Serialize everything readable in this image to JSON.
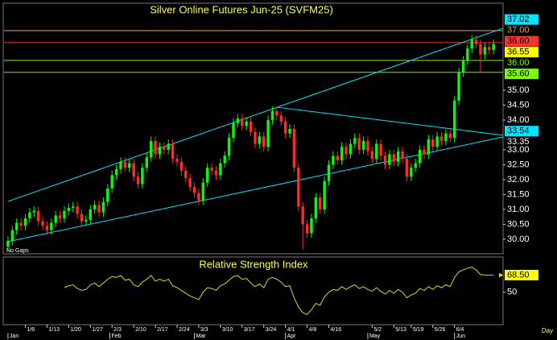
{
  "chart_data": {
    "type": "candlestick",
    "title": "Silver Online Futures Jun-25 (SVFM25)",
    "note": "No Gaps",
    "period": "Day",
    "xlim": [
      -1.1,
      114.2
    ],
    "ylim": [
      29.51,
      37.92
    ],
    "up_color": "#00ff00",
    "down_color": "#ff2a2a",
    "yticks": [
      {
        "value": 30,
        "label": "30.00"
      },
      {
        "value": 30.5,
        "label": "30.50"
      },
      {
        "value": 31,
        "label": "31.00"
      },
      {
        "value": 31.5,
        "label": "31.50"
      },
      {
        "value": 32,
        "label": "32.00"
      },
      {
        "value": 32.5,
        "label": "32.50"
      },
      {
        "value": 33,
        "label": "33.00"
      },
      {
        "value": 34,
        "label": "34.00"
      },
      {
        "value": 34.5,
        "label": "34.50"
      },
      {
        "value": 35,
        "label": "35.00"
      }
    ],
    "xticks": [
      {
        "value": 4,
        "label": "1/6"
      },
      {
        "value": 9,
        "label": "1/13"
      },
      {
        "value": 14,
        "label": "1/20"
      },
      {
        "value": 19,
        "label": "1/27"
      },
      {
        "value": 24,
        "label": "2/3"
      },
      {
        "value": 29,
        "label": "2/10"
      },
      {
        "value": 34,
        "label": "2/17"
      },
      {
        "value": 39,
        "label": "2/24"
      },
      {
        "value": 44,
        "label": "3/3"
      },
      {
        "value": 49,
        "label": "3/10"
      },
      {
        "value": 54,
        "label": "3/17"
      },
      {
        "value": 59,
        "label": "3/24"
      },
      {
        "value": 64,
        "label": "4/1"
      },
      {
        "value": 69,
        "label": "4/8"
      },
      {
        "value": 74,
        "label": "4/16"
      },
      {
        "value": 84,
        "label": "5/2"
      },
      {
        "value": 89,
        "label": "5/13"
      },
      {
        "value": 93,
        "label": "5/19"
      },
      {
        "value": 98,
        "label": "5/26"
      },
      {
        "value": 103,
        "label": "6/4"
      }
    ],
    "month_ticks": [
      {
        "value": 0,
        "label": "Jan"
      },
      {
        "value": 23.5,
        "label": "Feb"
      },
      {
        "value": 43,
        "label": "Mar"
      },
      {
        "value": 64,
        "label": "Apr"
      },
      {
        "value": 83,
        "label": "May"
      },
      {
        "value": 103,
        "label": "Jun"
      }
    ],
    "open": [
      29.75,
      29.95,
      30.3,
      30.55,
      30.45,
      30.7,
      30.9,
      30.95,
      30.6,
      30.45,
      30.3,
      30.55,
      30.8,
      30.7,
      30.95,
      31.05,
      31.1,
      30.85,
      30.6,
      30.65,
      31.0,
      31.15,
      30.9,
      31.25,
      31.7,
      32.15,
      32.35,
      32.6,
      32.4,
      32.55,
      32.1,
      31.85,
      32.4,
      32.75,
      33.3,
      32.85,
      33.1,
      33.0,
      33.2,
      32.7,
      32.6,
      32.3,
      32.05,
      31.75,
      31.55,
      31.3,
      31.9,
      32.4,
      32.3,
      32.15,
      32.55,
      32.8,
      33.4,
      33.9,
      34.05,
      33.8,
      33.95,
      33.6,
      33.2,
      33.45,
      33.1,
      34.0,
      34.3,
      34.15,
      33.95,
      33.55,
      33.7,
      32.4,
      31.1,
      30.5,
      30.2,
      30.7,
      31.4,
      31.0,
      31.95,
      32.5,
      32.8,
      32.65,
      33.1,
      32.85,
      33.2,
      33.4,
      33.0,
      33.3,
      32.95,
      32.7,
      33.2,
      32.8,
      32.5,
      32.85,
      32.6,
      32.95,
      32.7,
      32.1,
      32.4,
      32.55,
      33.0,
      32.85,
      33.35,
      33.1,
      33.45,
      33.3,
      33.55,
      33.4,
      34.65,
      35.6,
      36.0,
      36.4,
      36.7,
      36.55,
      36.2,
      36.45,
      36.35
    ],
    "high": [
      30.1,
      30.45,
      30.7,
      30.7,
      30.85,
      31.05,
      31.1,
      31.1,
      30.75,
      30.6,
      30.7,
      30.95,
      30.95,
      31.1,
      31.2,
      31.25,
      31.25,
      31.0,
      30.8,
      31.15,
      31.3,
      31.3,
      31.4,
      31.85,
      32.3,
      32.5,
      32.75,
      32.75,
      32.7,
      32.7,
      32.25,
      32.55,
      32.9,
      33.45,
      33.45,
      33.25,
      33.25,
      33.35,
      33.35,
      32.85,
      32.75,
      32.45,
      32.2,
      31.9,
      31.7,
      32.05,
      32.55,
      32.55,
      32.45,
      32.7,
      32.95,
      33.55,
      34.05,
      34.2,
      34.2,
      34.1,
      34.1,
      33.75,
      33.6,
      33.6,
      34.15,
      34.45,
      34.45,
      34.3,
      34.1,
      33.85,
      33.85,
      32.55,
      31.25,
      30.65,
      30.85,
      31.55,
      31.55,
      32.1,
      32.65,
      32.95,
      32.95,
      33.25,
      33.25,
      33.35,
      33.55,
      33.55,
      33.45,
      33.45,
      33.1,
      33.35,
      33.35,
      32.95,
      33.0,
      33.0,
      33.1,
      33.1,
      32.85,
      32.55,
      32.7,
      33.15,
      33.15,
      33.5,
      33.5,
      33.6,
      33.6,
      33.7,
      33.7,
      34.8,
      35.75,
      36.15,
      36.55,
      36.85,
      36.85,
      36.7,
      36.6,
      36.6,
      36.7
    ],
    "low": [
      29.6,
      29.8,
      30.15,
      30.3,
      30.3,
      30.55,
      30.75,
      30.45,
      30.3,
      30.15,
      30.15,
      30.4,
      30.55,
      30.55,
      30.8,
      30.9,
      30.7,
      30.45,
      30.45,
      30.5,
      30.85,
      30.75,
      30.75,
      31.1,
      31.55,
      32.0,
      32.2,
      32.25,
      32.25,
      31.95,
      31.7,
      31.7,
      32.25,
      32.6,
      32.7,
      32.7,
      32.85,
      32.85,
      32.55,
      32.45,
      32.15,
      31.9,
      31.6,
      31.4,
      31.15,
      31.15,
      31.75,
      32.15,
      32.0,
      32.0,
      32.4,
      32.65,
      33.25,
      33.75,
      33.65,
      33.65,
      33.45,
      33.05,
      33.05,
      32.95,
      32.95,
      33.85,
      34.0,
      33.8,
      33.4,
      33.4,
      32.25,
      30.95,
      29.65,
      30.05,
      30.05,
      30.55,
      30.85,
      30.85,
      31.8,
      32.35,
      32.5,
      32.5,
      32.7,
      32.7,
      33.05,
      32.85,
      32.85,
      32.8,
      32.55,
      32.55,
      32.65,
      32.35,
      32.35,
      32.45,
      32.45,
      32.55,
      31.95,
      31.95,
      32.25,
      32.4,
      32.7,
      32.7,
      32.95,
      32.95,
      33.15,
      33.15,
      33.25,
      33.25,
      34.5,
      35.45,
      35.85,
      36.25,
      36.4,
      35.6,
      36.05,
      36.2,
      36.2
    ],
    "close": [
      29.95,
      30.3,
      30.55,
      30.45,
      30.7,
      30.9,
      30.95,
      30.6,
      30.45,
      30.3,
      30.55,
      30.8,
      30.7,
      30.95,
      31.05,
      31.1,
      30.85,
      30.6,
      30.65,
      31.0,
      31.15,
      30.9,
      31.25,
      31.7,
      32.15,
      32.35,
      32.6,
      32.4,
      32.55,
      32.1,
      31.85,
      32.4,
      32.75,
      33.3,
      32.85,
      33.1,
      33.0,
      33.2,
      32.7,
      32.6,
      32.3,
      32.05,
      31.75,
      31.55,
      31.3,
      31.9,
      32.4,
      32.3,
      32.15,
      32.55,
      32.8,
      33.4,
      33.9,
      34.05,
      33.8,
      33.95,
      33.6,
      33.2,
      33.45,
      33.1,
      34.0,
      34.3,
      34.15,
      33.95,
      33.55,
      33.7,
      32.4,
      31.1,
      30.5,
      30.2,
      30.7,
      31.4,
      31.0,
      31.95,
      32.5,
      32.8,
      32.65,
      33.1,
      32.85,
      33.2,
      33.4,
      33.0,
      33.3,
      32.95,
      32.7,
      33.2,
      32.8,
      32.5,
      32.85,
      32.6,
      32.95,
      32.7,
      32.1,
      32.4,
      32.55,
      33.0,
      32.85,
      33.35,
      33.1,
      33.45,
      33.3,
      33.55,
      33.4,
      34.65,
      35.6,
      36.0,
      36.4,
      36.7,
      36.55,
      36.2,
      36.45,
      36.35,
      36.55
    ],
    "trendlines": [
      {
        "color": "#00e5ff",
        "x": [
          0,
          114.2
        ],
        "y": [
          31.27,
          37.08
        ]
      },
      {
        "color": "#00e5ff",
        "x": [
          0,
          114.2
        ],
        "y": [
          29.92,
          33.43
        ]
      },
      {
        "color": "#00e5ff",
        "x": [
          62,
          114.2
        ],
        "y": [
          34.43,
          33.49
        ]
      }
    ],
    "levels": [
      {
        "value": 37.02,
        "label": "37.02",
        "color": "#00e5ff",
        "boxed": true,
        "line": false
      },
      {
        "value": 37.0,
        "label": "37.00",
        "color": "#f0a040",
        "boxed": false,
        "line": true
      },
      {
        "value": 36.6,
        "label": "36.60",
        "color": "#ff3030",
        "boxed": true,
        "line": true
      },
      {
        "value": 36.55,
        "label": "36.55",
        "color": "#ffff00",
        "boxed": true,
        "line": false
      },
      {
        "value": 36.0,
        "label": "36.00",
        "color": "#7cfc00",
        "boxed": false,
        "line": true
      },
      {
        "value": 35.6,
        "label": "35.60",
        "color": "#7cfc00",
        "boxed": true,
        "line": true
      },
      {
        "value": 33.54,
        "label": "33.54",
        "color": "#00e5ff",
        "boxed": true,
        "line": false
      },
      {
        "value": 33.35,
        "label": "33.35",
        "color": "#ffffff",
        "boxed": false,
        "line": false
      }
    ],
    "rsi": {
      "title": "Relative Strength Index",
      "color": "#e8d020",
      "ylim": [
        15,
        88
      ],
      "yticks": [
        50
      ],
      "last": {
        "value": 68.5,
        "label": "68.50"
      },
      "values": [
        null,
        null,
        null,
        null,
        null,
        null,
        null,
        null,
        null,
        null,
        null,
        null,
        null,
        55,
        57,
        58,
        54,
        52,
        53,
        58,
        60,
        56,
        60,
        64,
        67,
        66,
        68,
        63,
        64,
        58,
        56,
        61,
        64,
        68,
        62,
        64,
        62,
        64,
        57,
        55,
        52,
        49,
        46,
        44,
        42,
        50,
        55,
        54,
        52,
        57,
        59,
        63,
        67,
        68,
        64,
        65,
        60,
        56,
        59,
        55,
        64,
        66,
        64,
        61,
        56,
        57,
        44,
        34,
        28,
        26,
        31,
        38,
        36,
        45,
        50,
        53,
        52,
        56,
        53,
        56,
        58,
        54,
        56,
        53,
        51,
        55,
        51,
        48,
        52,
        49,
        53,
        50,
        44,
        47,
        49,
        54,
        52,
        56,
        53,
        57,
        55,
        58,
        56,
        66,
        72,
        74,
        76,
        77,
        74,
        69,
        68.5,
        68.5,
        68.5
      ]
    }
  }
}
